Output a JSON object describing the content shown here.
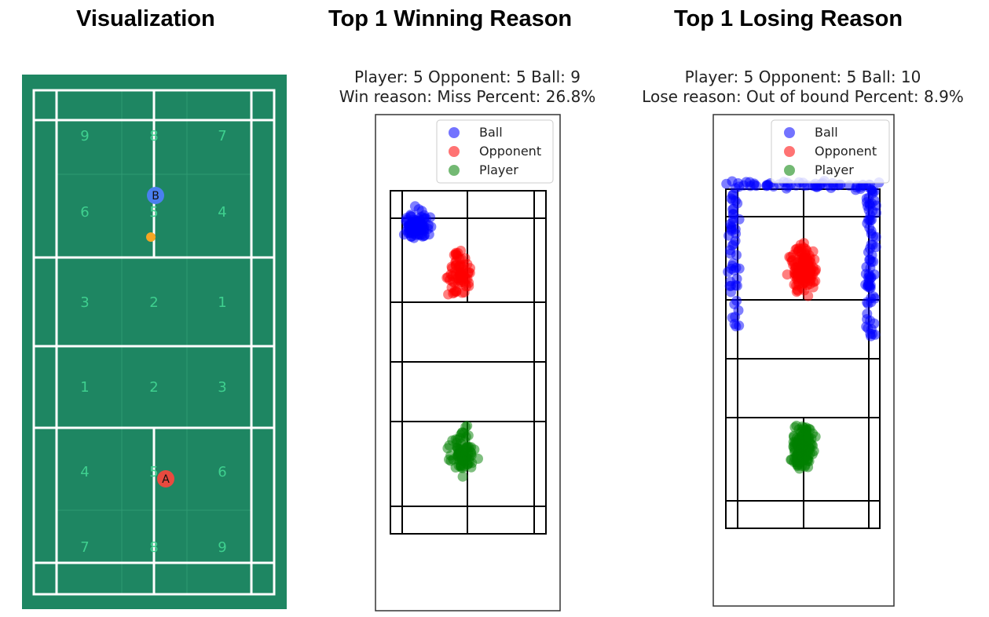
{
  "headings": {
    "visualization": "Visualization",
    "winning": "Top 1 Winning Reason",
    "losing": "Top 1 Losing Reason"
  },
  "colors": {
    "court_green": "#1e8662",
    "zone_number": "#3fd08f",
    "ball": "#0000ff",
    "opponent": "#ff0000",
    "player": "#008000",
    "marker_a": "#e84a3f",
    "marker_b": "#4a7ff0",
    "shuttle": "#f5a623"
  },
  "court": {
    "zones_top": [
      [
        "9",
        "8",
        "7"
      ],
      [
        "6",
        "5",
        "4"
      ],
      [
        "3",
        "2",
        "1"
      ]
    ],
    "zones_bottom": [
      [
        "1",
        "2",
        "3"
      ],
      [
        "4",
        "5",
        "6"
      ],
      [
        "7",
        "8",
        "9"
      ]
    ],
    "marker_a": "A",
    "marker_b": "B"
  },
  "chart_data": [
    {
      "type": "scatter",
      "title": "Top 1 Winning Reason",
      "subtitle_line1": "Player: 5 Opponent: 5 Ball: 9",
      "subtitle_line2": "Win reason: Miss Percent: 26.8%",
      "legend": [
        "Ball",
        "Opponent",
        "Player"
      ],
      "legend_position": "top-right",
      "grid": false,
      "series": [
        {
          "name": "Ball",
          "color": "#0000ff",
          "cluster": {
            "cx": 0.17,
            "cy": 0.1,
            "sx": 0.06,
            "sy": 0.035,
            "n": 90
          }
        },
        {
          "name": "Opponent",
          "color": "#ff0000",
          "cluster": {
            "cx": 0.44,
            "cy": 0.24,
            "sx": 0.07,
            "sy": 0.05,
            "n": 70
          }
        },
        {
          "name": "Player",
          "color": "#008000",
          "cluster": {
            "cx": 0.46,
            "cy": 0.76,
            "sx": 0.07,
            "sy": 0.06,
            "n": 75
          }
        }
      ]
    },
    {
      "type": "scatter",
      "title": "Top 1 Losing Reason",
      "subtitle_line1": "Player: 5 Opponent: 5 Ball: 10",
      "subtitle_line2": "Lose reason: Out of bound Percent: 8.9%",
      "legend": [
        "Ball",
        "Opponent",
        "Player"
      ],
      "legend_position": "top-right",
      "grid": false,
      "series": [
        {
          "name": "Ball",
          "color": "#0000ff",
          "cluster": {
            "cx": 0.5,
            "cy": 0.0,
            "sx": 0.0,
            "sy": 0.0,
            "n": 180
          }
        },
        {
          "name": "Opponent",
          "color": "#ff0000",
          "cluster": {
            "cx": 0.5,
            "cy": 0.24,
            "sx": 0.07,
            "sy": 0.07,
            "n": 140
          }
        },
        {
          "name": "Player",
          "color": "#008000",
          "cluster": {
            "cx": 0.5,
            "cy": 0.76,
            "sx": 0.06,
            "sy": 0.06,
            "n": 140
          }
        }
      ]
    }
  ]
}
